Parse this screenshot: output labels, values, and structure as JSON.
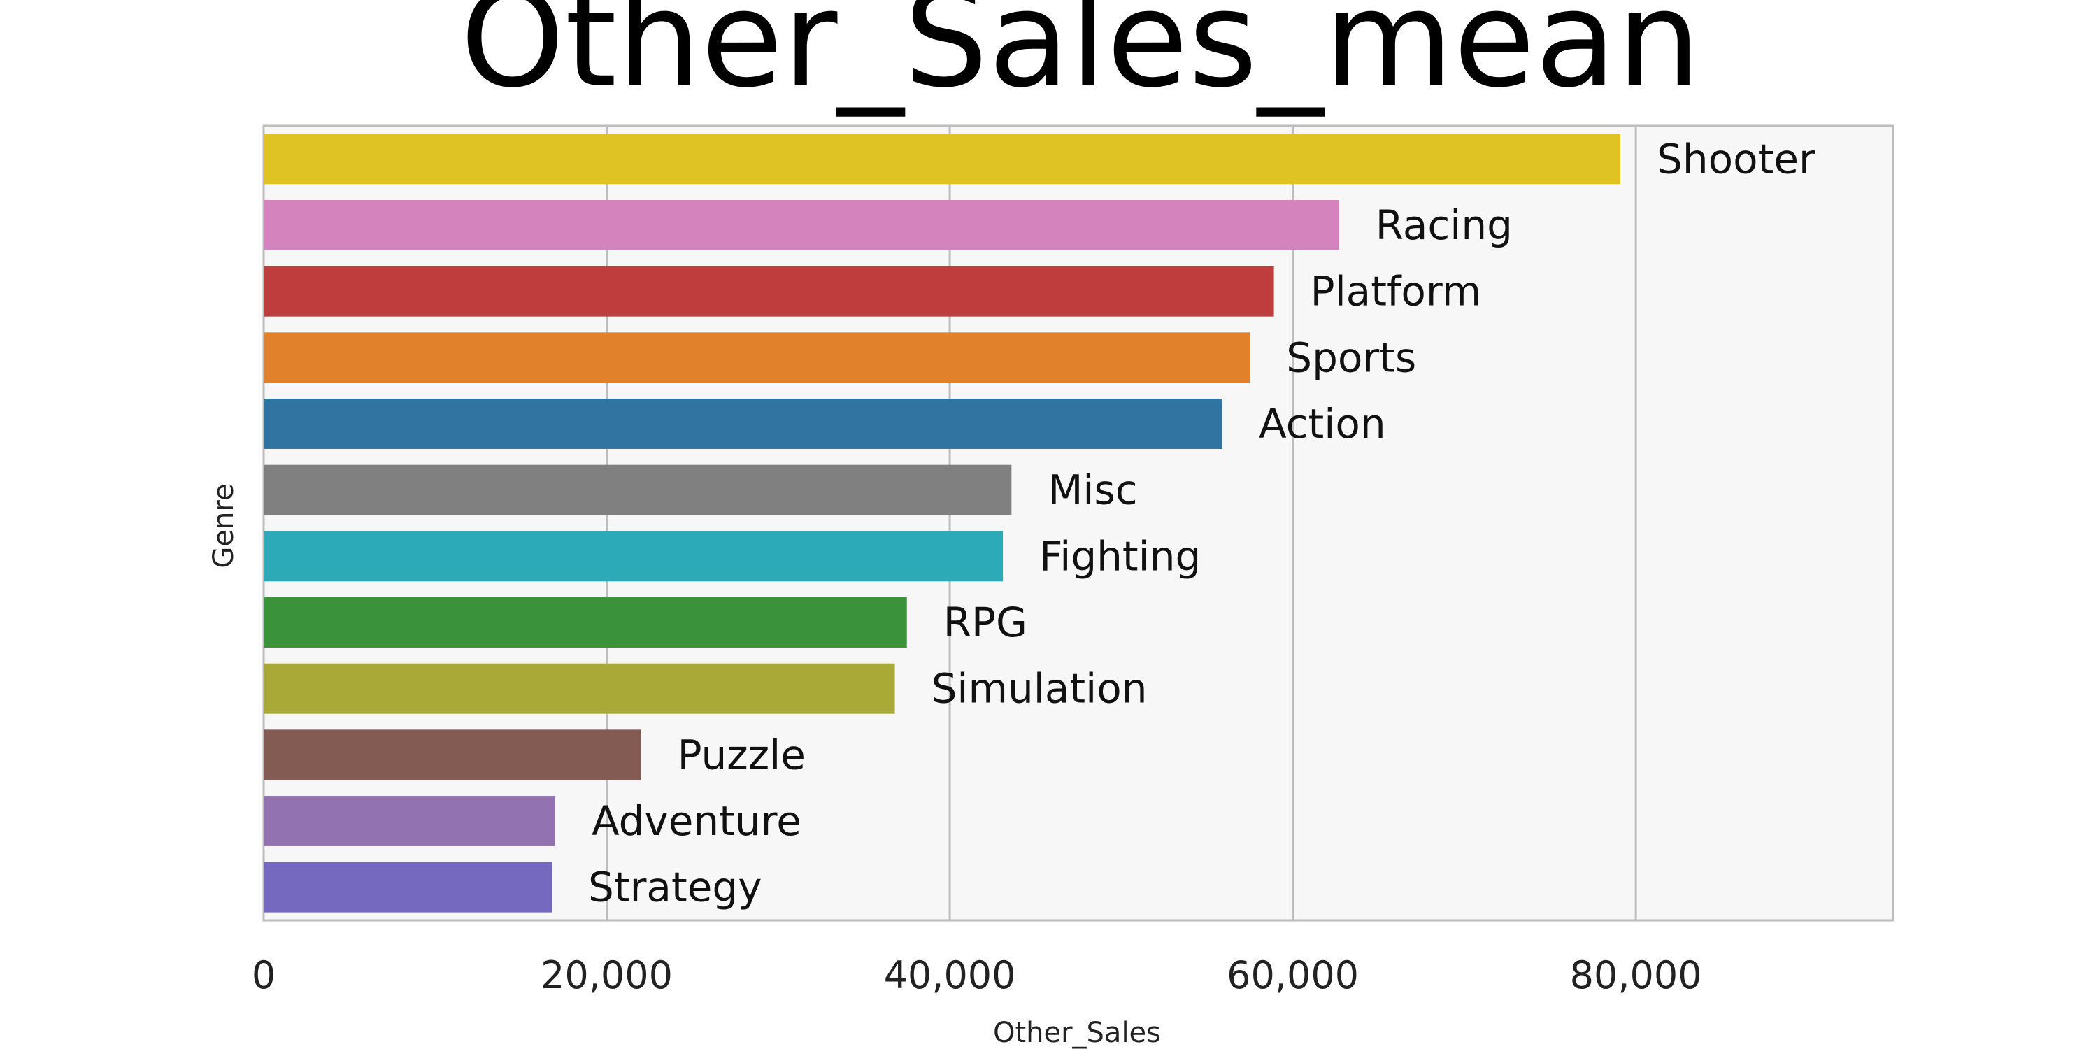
{
  "chart_data": {
    "type": "bar",
    "orientation": "horizontal",
    "title": "Other_Sales_mean",
    "xlabel": "Other_Sales",
    "ylabel": "Genre",
    "xlim": [
      0,
      95000
    ],
    "xticks": [
      0,
      20000,
      40000,
      60000,
      80000
    ],
    "xtick_labels": [
      "0",
      "20,000",
      "40,000",
      "60,000",
      "80,000"
    ],
    "grid": "vertical",
    "categories": [
      "Shooter",
      "Racing",
      "Platform",
      "Sports",
      "Action",
      "Misc",
      "Fighting",
      "RPG",
      "Simulation",
      "Puzzle",
      "Adventure",
      "Strategy"
    ],
    "values": [
      79100,
      62700,
      58900,
      57500,
      55900,
      43600,
      43100,
      37500,
      36800,
      22000,
      17000,
      16800
    ],
    "colors": [
      "#dfc223",
      "#d583bd",
      "#c03d3e",
      "#e1812c",
      "#3274a1",
      "#808080",
      "#2daab8",
      "#3a923a",
      "#a9a937",
      "#845b53",
      "#9372b2",
      "#7569bf"
    ]
  }
}
